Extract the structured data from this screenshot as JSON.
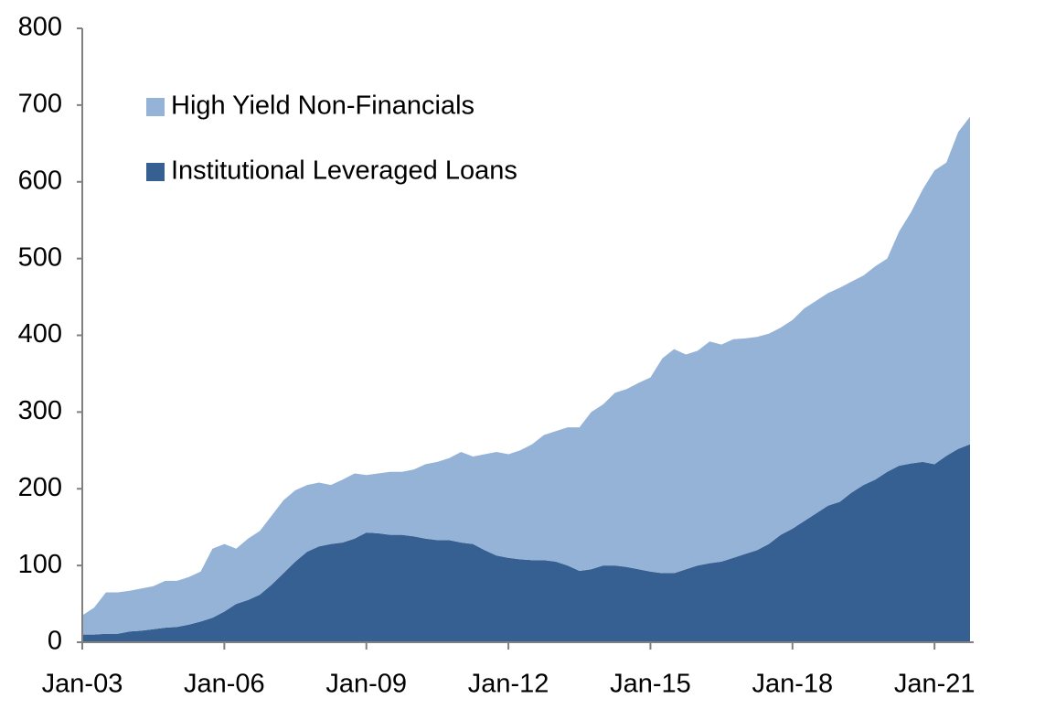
{
  "chart_data": {
    "type": "area",
    "stacked": true,
    "x": [
      "2003-01",
      "2003-04",
      "2003-07",
      "2003-10",
      "2004-01",
      "2004-04",
      "2004-07",
      "2004-10",
      "2005-01",
      "2005-04",
      "2005-07",
      "2005-10",
      "2006-01",
      "2006-04",
      "2006-07",
      "2006-10",
      "2007-01",
      "2007-04",
      "2007-07",
      "2007-10",
      "2008-01",
      "2008-04",
      "2008-07",
      "2008-10",
      "2009-01",
      "2009-04",
      "2009-07",
      "2009-10",
      "2010-01",
      "2010-04",
      "2010-07",
      "2010-10",
      "2011-01",
      "2011-04",
      "2011-07",
      "2011-10",
      "2012-01",
      "2012-04",
      "2012-07",
      "2012-10",
      "2013-01",
      "2013-04",
      "2013-07",
      "2013-10",
      "2014-01",
      "2014-04",
      "2014-07",
      "2014-10",
      "2015-01",
      "2015-04",
      "2015-07",
      "2015-10",
      "2016-01",
      "2016-04",
      "2016-07",
      "2016-10",
      "2017-01",
      "2017-04",
      "2017-07",
      "2017-10",
      "2018-01",
      "2018-04",
      "2018-07",
      "2018-10",
      "2019-01",
      "2019-04",
      "2019-07",
      "2019-10",
      "2020-01",
      "2020-04",
      "2020-07",
      "2020-10",
      "2021-01",
      "2021-04",
      "2021-07",
      "2021-10"
    ],
    "series": [
      {
        "name": "Institutional Leveraged Loans",
        "color": "#366092",
        "values": [
          10,
          10,
          11,
          11,
          14,
          15,
          17,
          19,
          20,
          23,
          27,
          32,
          40,
          50,
          55,
          62,
          75,
          90,
          105,
          118,
          125,
          128,
          130,
          135,
          143,
          142,
          140,
          140,
          138,
          135,
          133,
          133,
          130,
          128,
          120,
          113,
          110,
          108,
          107,
          107,
          105,
          100,
          93,
          95,
          100,
          100,
          98,
          95,
          92,
          90,
          90,
          95,
          100,
          103,
          105,
          110,
          115,
          120,
          128,
          140,
          148,
          158,
          168,
          178,
          183,
          195,
          205,
          212,
          222,
          230,
          233,
          235,
          232,
          243,
          252,
          258
        ]
      },
      {
        "name": "High Yield Non-Financials",
        "color": "#95b3d7",
        "values": [
          25,
          35,
          54,
          54,
          53,
          55,
          56,
          61,
          60,
          62,
          65,
          90,
          88,
          72,
          80,
          83,
          90,
          95,
          93,
          87,
          83,
          77,
          82,
          85,
          75,
          78,
          82,
          82,
          87,
          97,
          102,
          107,
          118,
          114,
          125,
          135,
          135,
          142,
          151,
          163,
          170,
          180,
          187,
          205,
          210,
          225,
          232,
          243,
          253,
          280,
          292,
          280,
          280,
          289,
          283,
          285,
          281,
          278,
          274,
          270,
          272,
          277,
          277,
          277,
          279,
          275,
          273,
          278,
          278,
          305,
          327,
          355,
          383,
          382,
          413,
          427
        ]
      }
    ],
    "xlim": [
      "2003-01",
      "2021-10"
    ],
    "xticks": [
      {
        "value": "2003-01",
        "label": "Jan-03"
      },
      {
        "value": "2006-01",
        "label": "Jan-06"
      },
      {
        "value": "2009-01",
        "label": "Jan-09"
      },
      {
        "value": "2012-01",
        "label": "Jan-12"
      },
      {
        "value": "2015-01",
        "label": "Jan-15"
      },
      {
        "value": "2018-01",
        "label": "Jan-18"
      },
      {
        "value": "2021-01",
        "label": "Jan-21"
      }
    ],
    "ylim": [
      0,
      800
    ],
    "yticks": [
      0,
      100,
      200,
      300,
      400,
      500,
      600,
      700,
      800
    ],
    "grid": false,
    "legend": "upper left"
  }
}
